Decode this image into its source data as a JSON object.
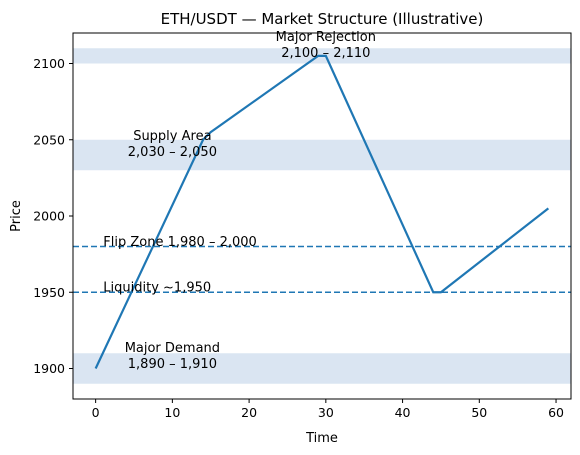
{
  "chart_data": {
    "type": "line",
    "title": "ETH/USDT — Market Structure (Illustrative)",
    "xlabel": "Time",
    "ylabel": "Price",
    "xlim": [
      -2.95,
      61.95
    ],
    "ylim": [
      1880,
      2120
    ],
    "xticks": [
      0,
      10,
      20,
      30,
      40,
      50,
      60
    ],
    "yticks": [
      1900,
      1950,
      2000,
      2050,
      2100
    ],
    "grid": false,
    "colors": {
      "line": "#1f77b4",
      "zone": "#dae5f2",
      "dashed": "#1f77b4"
    },
    "series": [
      {
        "x": [
          0,
          14,
          15,
          29,
          30,
          44,
          45,
          59
        ],
        "y": [
          1900,
          2050,
          2055,
          2105,
          2105,
          1950,
          1950,
          2005
        ]
      }
    ],
    "zones": [
      {
        "y0": 2100,
        "y1": 2110
      },
      {
        "y0": 2030,
        "y1": 2050
      },
      {
        "y0": 1890,
        "y1": 1910
      }
    ],
    "hlines": [
      {
        "y": 1980,
        "style": "dashed"
      },
      {
        "y": 1950,
        "style": "dashed"
      }
    ],
    "annotations": [
      {
        "lines": [
          "Major Rejection",
          "2,100 – 2,110"
        ],
        "x": 30,
        "y": 2107,
        "align": "middle"
      },
      {
        "lines": [
          "Supply Area",
          "2,030 – 2,050"
        ],
        "x": 10,
        "y": 2042,
        "align": "middle"
      },
      {
        "lines": [
          "Flip Zone 1,980 – 2,000"
        ],
        "x": 1,
        "y": 1983,
        "align": "start"
      },
      {
        "lines": [
          "Liquidity ~1,950"
        ],
        "x": 1,
        "y": 1953,
        "align": "start"
      },
      {
        "lines": [
          "Major Demand",
          "1,890 – 1,910"
        ],
        "x": 10,
        "y": 1903,
        "align": "middle"
      }
    ]
  }
}
